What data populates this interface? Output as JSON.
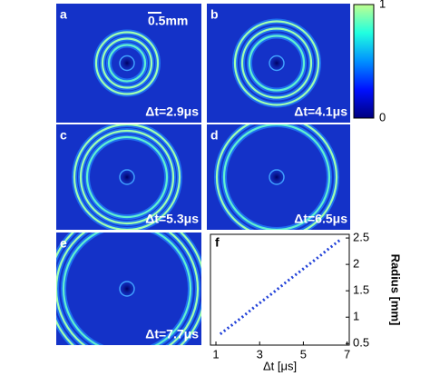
{
  "panels": [
    {
      "label": "a",
      "time": "Δt=2.9μs"
    },
    {
      "label": "b",
      "time": "Δt=4.1μs"
    },
    {
      "label": "c",
      "time": "Δt=5.3μs"
    },
    {
      "label": "d",
      "time": "Δt=6.5μs"
    },
    {
      "label": "e",
      "time": "Δt=7.7μs"
    }
  ],
  "scale_bar": "0.5mm",
  "colorbar": {
    "ticks": [
      0,
      1
    ]
  },
  "chart_data": {
    "type": "line",
    "panel_label": "f",
    "xlabel": "Δt [μs]",
    "ylabel": "Radius [mm]",
    "x": [
      1.2,
      1.7,
      2.2,
      2.7,
      3.2,
      3.7,
      4.2,
      4.7,
      5.2,
      5.7,
      6.2,
      6.7
    ],
    "series": [
      {
        "color": "#2040d8",
        "values": [
          0.68,
          0.84,
          1.0,
          1.17,
          1.33,
          1.49,
          1.66,
          1.82,
          1.98,
          2.14,
          2.31,
          2.47
        ]
      }
    ],
    "xlim": [
      0.75,
      7.1
    ],
    "ylim": [
      0.47,
      2.57
    ],
    "xticks": [
      1,
      3,
      5,
      7
    ],
    "yticks": [
      0.5,
      1,
      1.5,
      2,
      2.5
    ]
  }
}
